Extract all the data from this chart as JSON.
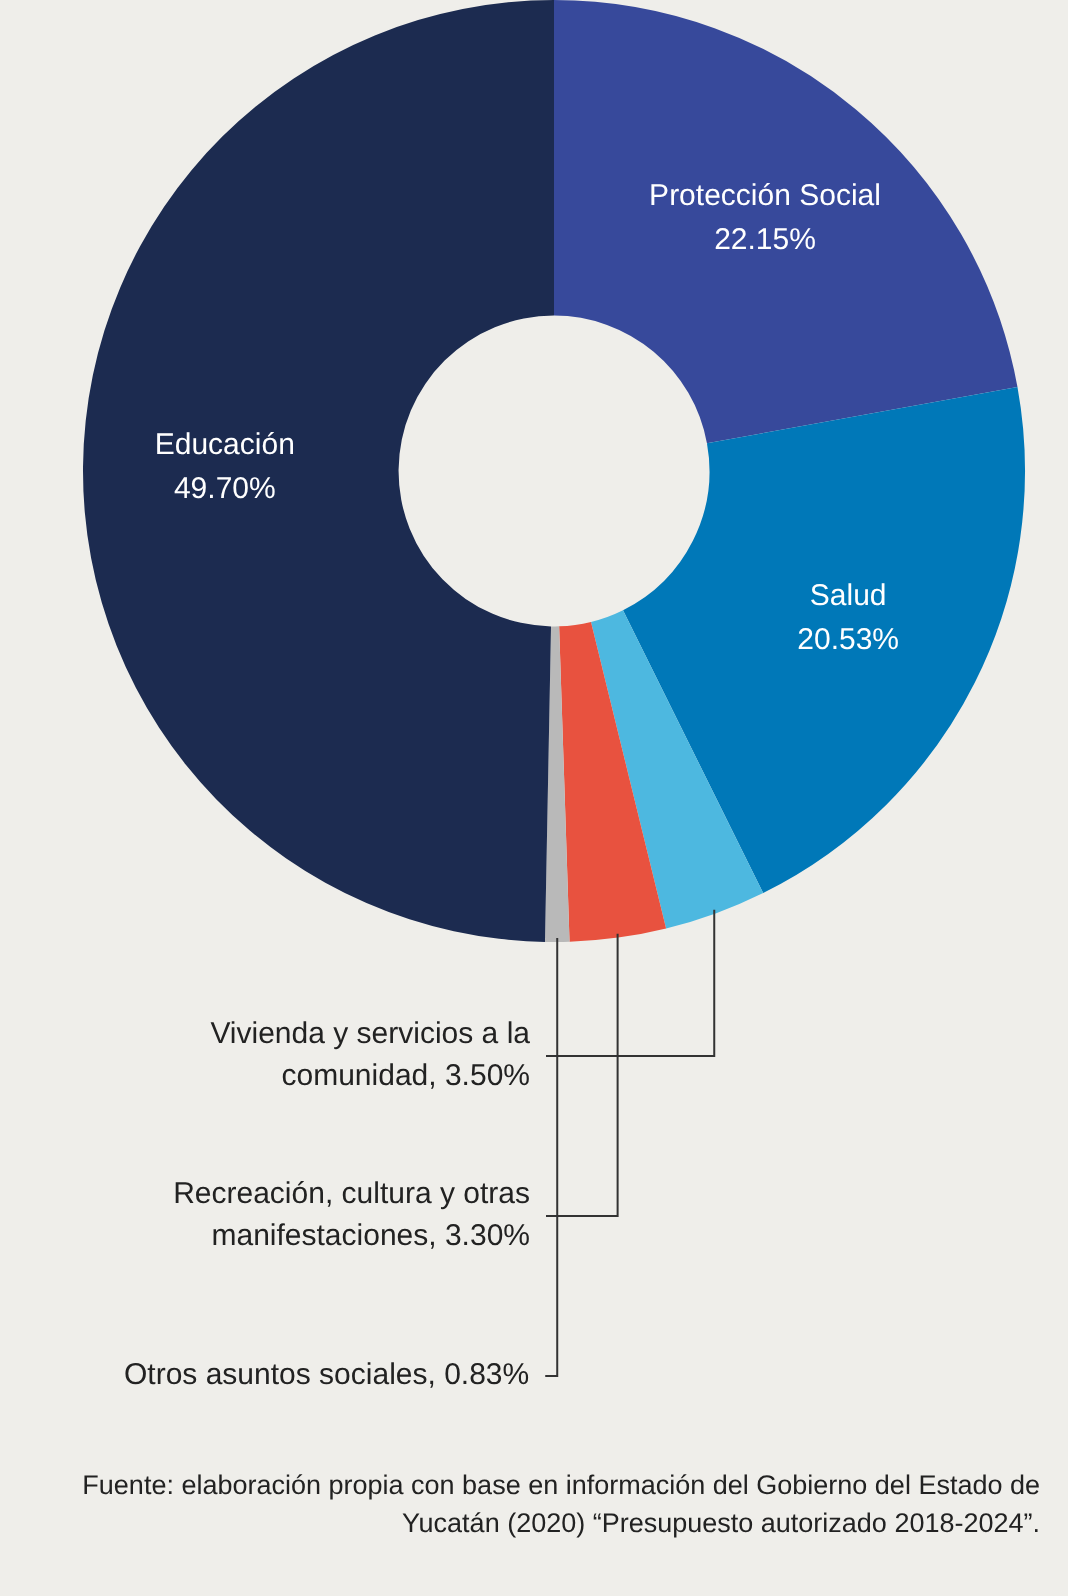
{
  "chart_data": {
    "type": "donut",
    "categories": [
      "Protección Social",
      "Salud",
      "Vivienda y servicios a la comunidad",
      "Recreación, cultura y otras manifestaciones",
      "Otros asuntos sociales",
      "Educación"
    ],
    "values": [
      22.15,
      20.53,
      3.5,
      3.3,
      0.83,
      49.7
    ],
    "value_labels": [
      "22.15%",
      "20.53%",
      "3.50%",
      "3.30%",
      "0.83%",
      "49.70%"
    ],
    "colors": [
      "#37499b",
      "#0078b8",
      "#4db8e0",
      "#e8523f",
      "#b9b9b9",
      "#1c2b50"
    ],
    "legend": false,
    "annotations": [
      "Fuente: elaboración propia con base en información del Gobierno del Estado de Yucatán (2020) “Presupuesto autorizado 2018-2024”."
    ]
  }
}
